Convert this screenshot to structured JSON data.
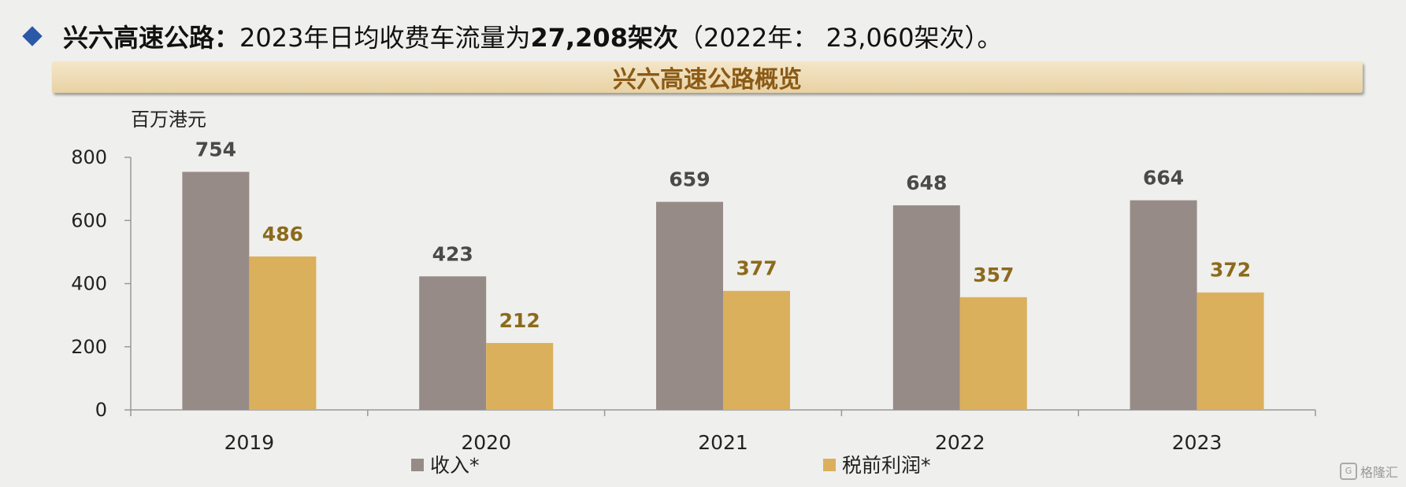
{
  "headline": {
    "title": "兴六高速公路：",
    "text_prefix": "2023年日均收费车流量为",
    "highlight": "27,208架次",
    "text_suffix": "（2022年： 23,060架次）。"
  },
  "banner": {
    "title": "兴六高速公路概览"
  },
  "watermark": {
    "text": "格隆汇"
  },
  "colors": {
    "revenue": "#978b88",
    "profit": "#dbb05c",
    "profit_label": "#8c6a1c",
    "revenue_label": "#4a4a4a",
    "accent": "#2c58a8"
  },
  "chart_data": {
    "type": "bar",
    "unit": "百万港元",
    "categories": [
      "2019",
      "2020",
      "2021",
      "2022",
      "2023"
    ],
    "series": [
      {
        "name": "收入*",
        "values": [
          754,
          423,
          659,
          648,
          664
        ]
      },
      {
        "name": "税前利润*",
        "values": [
          486,
          212,
          377,
          357,
          372
        ]
      }
    ],
    "yticks": [
      0,
      200,
      400,
      600,
      800
    ],
    "ylim": [
      0,
      800
    ],
    "legend_position": "bottom",
    "grid": false
  }
}
